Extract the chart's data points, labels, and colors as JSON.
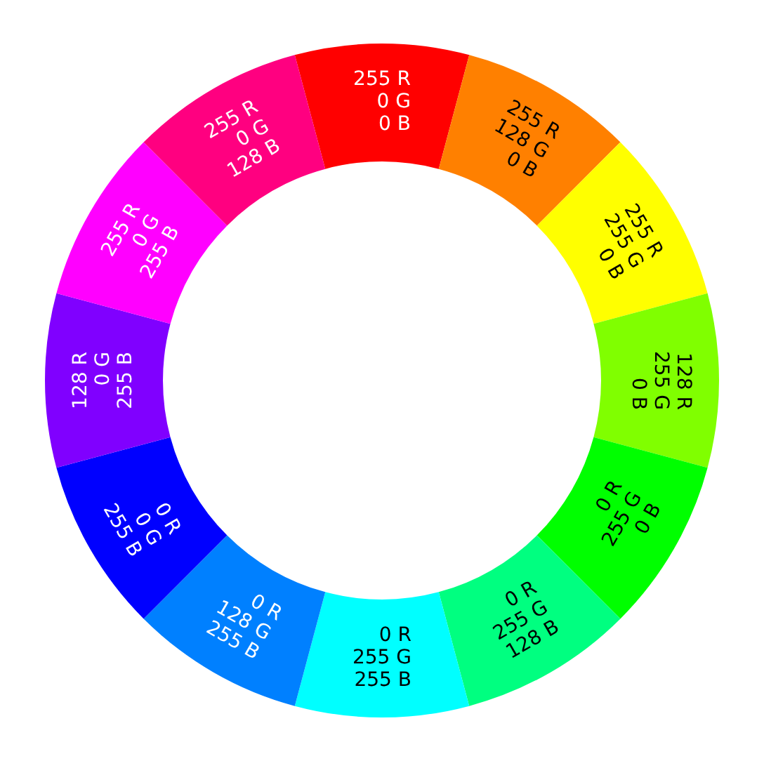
{
  "chart_data": {
    "type": "donut",
    "legend": false,
    "categories": [
      "255 R\n0 G\n0 B",
      "255 R\n128 G\n0 B",
      "255 R\n255 G\n0 B",
      "128 R\n255 G\n0 B",
      "0 R\n255 G\n0 B",
      "0 R\n255 G\n128 B",
      "0 R\n255 G\n255 B",
      "0 R\n128 G\n255 B",
      "0 R\n0 G\n255 B",
      "128 R\n0 G\n255 B",
      "255 R\n0 G\n255 B",
      "255 R\n0 G\n128 B"
    ],
    "values": [
      8.333,
      8.333,
      8.333,
      8.333,
      8.333,
      8.333,
      8.333,
      8.333,
      8.333,
      8.333,
      8.333,
      8.333
    ],
    "colors": [
      "#ff0000",
      "#ff8000",
      "#ffff00",
      "#80ff00",
      "#00ff00",
      "#00ff80",
      "#00ffff",
      "#0080ff",
      "#0000ff",
      "#8000ff",
      "#ff00ff",
      "#ff0080"
    ]
  }
}
